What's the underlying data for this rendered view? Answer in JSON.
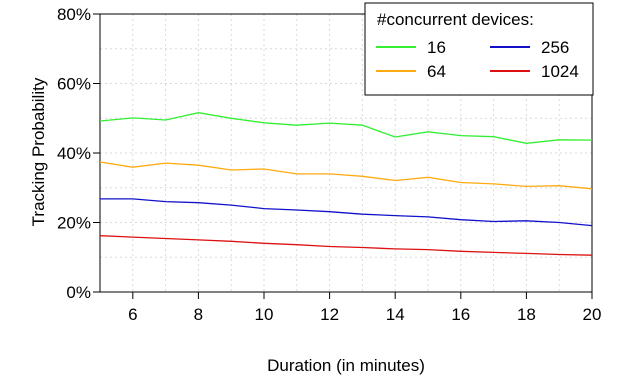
{
  "chart_data": {
    "type": "line",
    "title": "",
    "xlabel": "Duration (in minutes)",
    "ylabel": "Tracking Probability",
    "xlim": [
      5,
      20
    ],
    "ylim": [
      0,
      80
    ],
    "xticks": [
      6,
      8,
      10,
      12,
      14,
      16,
      18,
      20
    ],
    "xtick_labels": [
      "6",
      "8",
      "10",
      "12",
      "14",
      "16",
      "18",
      "20"
    ],
    "yticks": [
      0,
      20,
      40,
      60,
      80
    ],
    "ytick_labels": [
      "0%",
      "20%",
      "40%",
      "60%",
      "80%"
    ],
    "grid": true,
    "legend": {
      "title": "#concurrent devices:",
      "placement": "top-right",
      "columns": 2
    },
    "x": [
      5,
      6,
      7,
      8,
      9,
      10,
      11,
      12,
      13,
      14,
      15,
      16,
      17,
      18,
      19,
      20
    ],
    "series": [
      {
        "name": "16",
        "color": "#33ee33",
        "values": [
          49.2,
          50.1,
          49.5,
          51.6,
          50.0,
          48.7,
          48.0,
          48.6,
          48.0,
          44.6,
          46.1,
          45.0,
          44.7,
          42.8,
          43.8,
          43.7
        ]
      },
      {
        "name": "64",
        "color": "#ffaa11",
        "values": [
          37.4,
          35.9,
          37.1,
          36.5,
          35.1,
          35.4,
          34.0,
          34.0,
          33.3,
          32.1,
          33.0,
          31.5,
          31.1,
          30.4,
          30.6,
          29.7
        ]
      },
      {
        "name": "256",
        "color": "#1111cc",
        "values": [
          26.8,
          26.8,
          26.0,
          25.7,
          25.0,
          24.0,
          23.6,
          23.1,
          22.4,
          22.0,
          21.6,
          20.8,
          20.3,
          20.5,
          20.0,
          19.1
        ]
      },
      {
        "name": "1024",
        "color": "#dd1111",
        "values": [
          16.2,
          15.8,
          15.4,
          15.0,
          14.6,
          14.0,
          13.6,
          13.1,
          12.8,
          12.4,
          12.2,
          11.7,
          11.4,
          11.1,
          10.8,
          10.6
        ]
      }
    ]
  }
}
